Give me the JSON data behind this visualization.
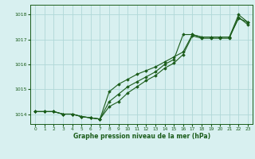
{
  "background_color": "#d8f0f0",
  "grid_color": "#b0d8d8",
  "line_color": "#1a5c1a",
  "marker_color": "#1a5c1a",
  "xlabel": "Graphe pression niveau de la mer (hPa)",
  "xlim": [
    -0.5,
    23.5
  ],
  "ylim": [
    1013.6,
    1018.4
  ],
  "yticks": [
    1014,
    1015,
    1016,
    1017,
    1018
  ],
  "xticks": [
    0,
    1,
    2,
    3,
    4,
    5,
    6,
    7,
    8,
    9,
    10,
    11,
    12,
    13,
    14,
    15,
    16,
    17,
    18,
    19,
    20,
    21,
    22,
    23
  ],
  "series": [
    [
      1014.1,
      1014.1,
      1014.1,
      1014.0,
      1014.0,
      1013.9,
      1013.85,
      1013.8,
      1014.5,
      1014.8,
      1015.1,
      1015.3,
      1015.5,
      1015.7,
      1016.0,
      1016.2,
      1017.2,
      1017.2,
      1017.1,
      1017.1,
      1017.1,
      1017.1,
      1017.85,
      1017.7
    ],
    [
      1014.1,
      1014.1,
      1014.1,
      1014.0,
      1014.0,
      1013.9,
      1013.85,
      1013.8,
      1014.9,
      1015.2,
      1015.4,
      1015.6,
      1015.75,
      1015.9,
      1016.1,
      1016.3,
      1016.5,
      1017.2,
      1017.1,
      1017.1,
      1017.1,
      1017.1,
      1018.0,
      1017.7
    ],
    [
      1014.1,
      1014.1,
      1014.1,
      1014.0,
      1014.0,
      1013.9,
      1013.85,
      1013.8,
      1014.3,
      1014.5,
      1014.85,
      1015.1,
      1015.35,
      1015.55,
      1015.85,
      1016.05,
      1016.4,
      1017.15,
      1017.05,
      1017.05,
      1017.05,
      1017.05,
      1017.9,
      1017.6
    ]
  ]
}
